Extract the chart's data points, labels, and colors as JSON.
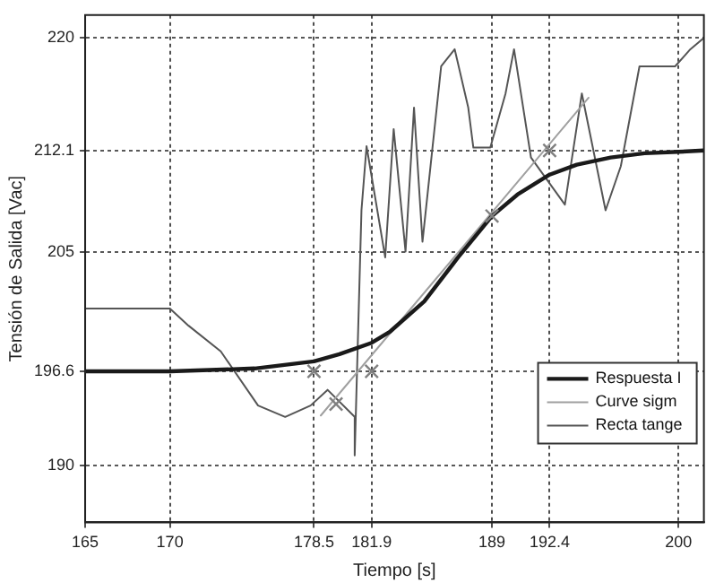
{
  "chart_data": {
    "type": "line",
    "xlabel": "Tiempo [s]",
    "ylabel": "Tensión de Salida [Vac]",
    "xlim": [
      165,
      201.5
    ],
    "ylim": [
      186,
      221.6
    ],
    "xticks": [
      165,
      170,
      178.5,
      181.9,
      189,
      192.4,
      200
    ],
    "yticks": [
      190,
      196.6,
      205,
      212.1,
      220
    ],
    "grid": true,
    "legend": "bottom right",
    "marker": "none",
    "line_style": "solid",
    "series": [
      {
        "name": "Respuesta I",
        "color": "#1a1a1a",
        "x": [
          165,
          170,
          175,
          178.5,
          180,
          181.9,
          183,
          185,
          187,
          189,
          190.5,
          192.4,
          194,
          196,
          198,
          200,
          201.5
        ],
        "values": [
          196.6,
          196.6,
          196.8,
          197.3,
          197.8,
          198.6,
          199.4,
          201.5,
          204.6,
          207.5,
          209,
          210.4,
          211.1,
          211.6,
          211.9,
          212,
          212.1
        ]
      },
      {
        "name": "Curve sigm",
        "color": "#a0a0a0",
        "x": [
          178.9,
          194.7
        ],
        "values": [
          193.5,
          215.8
        ]
      },
      {
        "name": "Recta tange",
        "color": "#555555",
        "x": [
          165,
          170,
          171.1,
          173,
          175.2,
          176.8,
          178.3,
          179.3,
          180.9,
          180.9,
          181.3,
          181.6,
          182.7,
          183.2,
          183.9,
          184.4,
          184.9,
          186,
          186.8,
          187.6,
          187.9,
          188.9,
          189.8,
          190.3,
          191.3,
          193.3,
          194.3,
          195.7,
          196.6,
          197.7,
          199.8,
          200.7,
          201.5
        ],
        "values": [
          201,
          201,
          199.8,
          198,
          194.2,
          193.4,
          194.2,
          195.3,
          193.4,
          190.7,
          207.9,
          212.4,
          204.6,
          213.6,
          205,
          215.1,
          205.7,
          218,
          219.2,
          215.1,
          212.3,
          212.3,
          216.1,
          219.2,
          211.6,
          208.3,
          216.1,
          207.9,
          211,
          218,
          218,
          219.2,
          220
        ]
      },
      {
        "type": "scatter",
        "marker": "cross",
        "color": "#808080",
        "x": [
          178.5,
          179.8,
          181.9,
          189,
          192.4
        ],
        "values": [
          196.6,
          194.3,
          196.6,
          207.5,
          212.1
        ]
      }
    ]
  }
}
